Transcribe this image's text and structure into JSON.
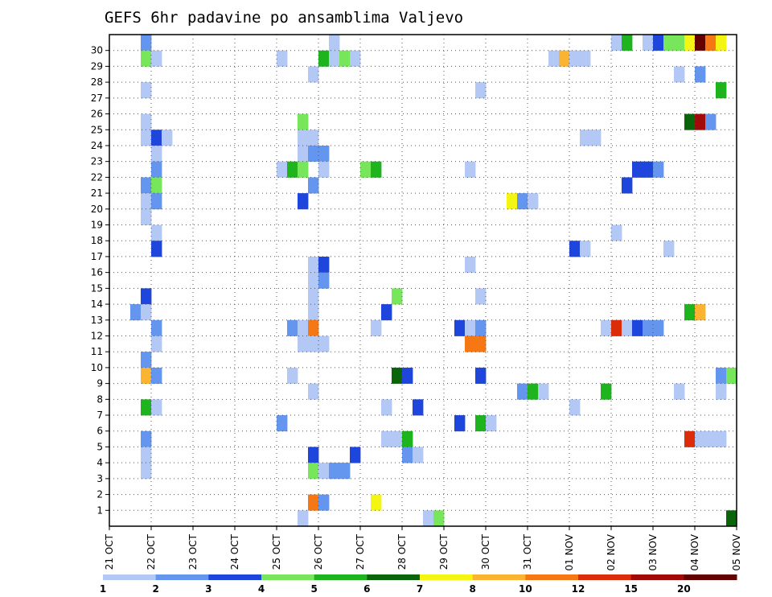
{
  "chart_data": {
    "type": "heatmap",
    "title": "GEFS 6hr padavine po ansamblima Valjevo",
    "x_labels": [
      "21 OCT",
      "22 OCT",
      "23 OCT",
      "24 OCT",
      "25 OCT",
      "26 OCT",
      "27 OCT",
      "28 OCT",
      "29 OCT",
      "30 OCT",
      "31 OCT",
      "01 NOV",
      "02 NOV",
      "03 NOV",
      "04 NOV",
      "05 NOV"
    ],
    "y_labels": [
      "1",
      "2",
      "3",
      "4",
      "5",
      "6",
      "7",
      "8",
      "9",
      "10",
      "11",
      "12",
      "13",
      "14",
      "15",
      "16",
      "17",
      "18",
      "19",
      "20",
      "21",
      "22",
      "23",
      "24",
      "25",
      "26",
      "27",
      "28",
      "29",
      "30"
    ],
    "ylim": [
      0,
      30
    ],
    "steps_per_day": 4,
    "grid": true,
    "legend": {
      "placement": "bottom",
      "levels": [
        1,
        2,
        3,
        4,
        5,
        6,
        7,
        8,
        10,
        12,
        15,
        20
      ],
      "labels": [
        "1",
        "2",
        "3",
        "4",
        "5",
        "6",
        "7",
        "8",
        "10",
        "12",
        "15",
        "20"
      ],
      "colors": [
        "#b4c8f5",
        "#6496f0",
        "#1e46dc",
        "#78e65a",
        "#1eb41e",
        "#0a640a",
        "#f5f514",
        "#fab432",
        "#f57814",
        "#dc2d0a",
        "#a00a0a",
        "#640000"
      ]
    },
    "cells": [
      [
        30,
        3,
        2
      ],
      [
        30,
        21,
        1
      ],
      [
        30,
        48,
        1
      ],
      [
        30,
        49,
        5
      ],
      [
        30,
        51,
        1
      ],
      [
        30,
        52,
        3
      ],
      [
        30,
        53,
        4
      ],
      [
        30,
        54,
        4
      ],
      [
        30,
        55,
        7
      ],
      [
        30,
        56,
        12
      ],
      [
        30,
        57,
        9
      ],
      [
        30,
        58,
        7
      ],
      [
        29,
        3,
        4
      ],
      [
        29,
        4,
        1
      ],
      [
        29,
        16,
        1
      ],
      [
        29,
        20,
        5
      ],
      [
        29,
        21,
        1
      ],
      [
        29,
        22,
        4
      ],
      [
        29,
        23,
        1
      ],
      [
        29,
        42,
        1
      ],
      [
        29,
        43,
        8
      ],
      [
        29,
        44,
        1
      ],
      [
        29,
        45,
        1
      ],
      [
        28,
        19,
        1
      ],
      [
        28,
        54,
        1
      ],
      [
        28,
        56,
        2
      ],
      [
        27,
        3,
        1
      ],
      [
        27,
        35,
        1
      ],
      [
        27,
        58,
        5
      ],
      [
        25,
        3,
        1
      ],
      [
        25,
        18,
        4
      ],
      [
        25,
        55,
        6
      ],
      [
        25,
        56,
        11
      ],
      [
        25,
        57,
        2
      ],
      [
        24,
        3,
        1
      ],
      [
        24,
        4,
        3
      ],
      [
        24,
        5,
        1
      ],
      [
        24,
        18,
        1
      ],
      [
        24,
        19,
        1
      ],
      [
        24,
        45,
        1
      ],
      [
        24,
        46,
        1
      ],
      [
        23,
        4,
        1
      ],
      [
        23,
        18,
        1
      ],
      [
        23,
        19,
        2
      ],
      [
        23,
        20,
        2
      ],
      [
        22,
        4,
        2
      ],
      [
        22,
        16,
        1
      ],
      [
        22,
        17,
        5
      ],
      [
        22,
        18,
        4
      ],
      [
        22,
        20,
        1
      ],
      [
        22,
        24,
        4
      ],
      [
        22,
        25,
        5
      ],
      [
        22,
        34,
        1
      ],
      [
        22,
        50,
        3
      ],
      [
        22,
        51,
        3
      ],
      [
        22,
        52,
        2
      ],
      [
        21,
        3,
        2
      ],
      [
        21,
        4,
        4
      ],
      [
        21,
        19,
        2
      ],
      [
        21,
        49,
        3
      ],
      [
        20,
        3,
        1
      ],
      [
        20,
        4,
        2
      ],
      [
        20,
        18,
        3
      ],
      [
        20,
        38,
        7
      ],
      [
        20,
        39,
        2
      ],
      [
        20,
        40,
        1
      ],
      [
        19,
        3,
        1
      ],
      [
        18,
        4,
        1
      ],
      [
        18,
        48,
        1
      ],
      [
        17,
        4,
        3
      ],
      [
        17,
        44,
        3
      ],
      [
        17,
        45,
        1
      ],
      [
        17,
        53,
        1
      ],
      [
        16,
        19,
        1
      ],
      [
        16,
        20,
        3
      ],
      [
        16,
        34,
        1
      ],
      [
        15,
        19,
        1
      ],
      [
        15,
        20,
        2
      ],
      [
        14,
        3,
        3
      ],
      [
        14,
        19,
        1
      ],
      [
        14,
        27,
        4
      ],
      [
        14,
        35,
        1
      ],
      [
        13,
        2,
        2
      ],
      [
        13,
        3,
        1
      ],
      [
        13,
        19,
        1
      ],
      [
        13,
        26,
        3
      ],
      [
        13,
        55,
        5
      ],
      [
        13,
        56,
        8
      ],
      [
        12,
        4,
        2
      ],
      [
        12,
        17,
        2
      ],
      [
        12,
        18,
        1
      ],
      [
        12,
        19,
        9
      ],
      [
        12,
        25,
        1
      ],
      [
        12,
        33,
        3
      ],
      [
        12,
        34,
        1
      ],
      [
        12,
        35,
        2
      ],
      [
        12,
        47,
        1
      ],
      [
        12,
        48,
        10
      ],
      [
        12,
        49,
        1
      ],
      [
        12,
        50,
        3
      ],
      [
        12,
        51,
        2
      ],
      [
        12,
        52,
        2
      ],
      [
        11,
        4,
        1
      ],
      [
        11,
        18,
        1
      ],
      [
        11,
        19,
        1
      ],
      [
        11,
        20,
        1
      ],
      [
        11,
        34,
        9
      ],
      [
        11,
        35,
        9
      ],
      [
        10,
        3,
        2
      ],
      [
        9,
        3,
        8
      ],
      [
        9,
        4,
        2
      ],
      [
        9,
        17,
        1
      ],
      [
        9,
        27,
        6
      ],
      [
        9,
        28,
        3
      ],
      [
        9,
        35,
        3
      ],
      [
        9,
        58,
        2
      ],
      [
        9,
        59,
        4
      ],
      [
        8,
        19,
        1
      ],
      [
        8,
        39,
        2
      ],
      [
        8,
        40,
        5
      ],
      [
        8,
        41,
        1
      ],
      [
        8,
        47,
        5
      ],
      [
        8,
        54,
        1
      ],
      [
        8,
        58,
        1
      ],
      [
        7,
        3,
        5
      ],
      [
        7,
        4,
        1
      ],
      [
        7,
        26,
        1
      ],
      [
        7,
        29,
        3
      ],
      [
        7,
        44,
        1
      ],
      [
        6,
        16,
        2
      ],
      [
        6,
        33,
        3
      ],
      [
        6,
        35,
        5
      ],
      [
        6,
        36,
        1
      ],
      [
        5,
        3,
        2
      ],
      [
        5,
        26,
        1
      ],
      [
        5,
        27,
        1
      ],
      [
        5,
        28,
        5
      ],
      [
        5,
        55,
        10
      ],
      [
        5,
        56,
        1
      ],
      [
        5,
        57,
        1
      ],
      [
        5,
        58,
        1
      ],
      [
        4,
        3,
        1
      ],
      [
        4,
        19,
        3
      ],
      [
        4,
        23,
        3
      ],
      [
        4,
        28,
        2
      ],
      [
        4,
        29,
        1
      ],
      [
        3,
        3,
        1
      ],
      [
        3,
        19,
        4
      ],
      [
        3,
        20,
        1
      ],
      [
        3,
        21,
        2
      ],
      [
        3,
        22,
        2
      ],
      [
        1,
        19,
        9
      ],
      [
        1,
        20,
        2
      ],
      [
        1,
        25,
        7
      ],
      [
        0,
        18,
        1
      ],
      [
        0,
        30,
        1
      ],
      [
        0,
        31,
        4
      ],
      [
        0,
        59,
        6
      ]
    ]
  }
}
